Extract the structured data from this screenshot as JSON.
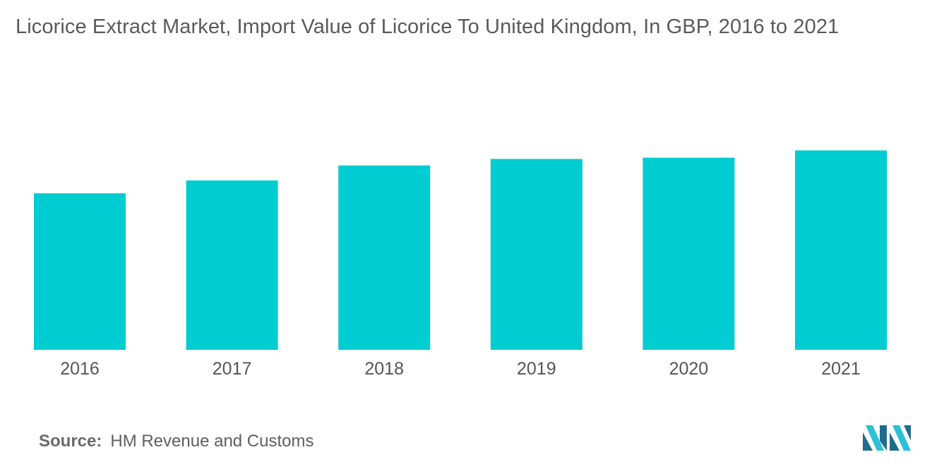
{
  "title": "Licorice Extract Market, Import Value of Licorice To United Kingdom, In GBP, 2016 to 2021",
  "source": {
    "label": "Source:",
    "text": "HM Revenue and Customs"
  },
  "logo_icon": "mordor-intelligence-logo-icon",
  "colors": {
    "bar": "#00cdd1",
    "text": "#5a5a5a",
    "logo_dark": "#1f6d8c",
    "logo_light": "#2bc0d6"
  },
  "chart_data": {
    "type": "bar",
    "categories": [
      "2016",
      "2017",
      "2018",
      "2019",
      "2020",
      "2021"
    ],
    "values": [
      73,
      79,
      86,
      89,
      89.6,
      93
    ],
    "title": "Licorice Extract Market, Import Value of Licorice To United Kingdom, In GBP, 2016 to 2021",
    "xlabel": "",
    "ylabel": "",
    "ylim": [
      0,
      100
    ],
    "grid": false,
    "legend": "none"
  }
}
